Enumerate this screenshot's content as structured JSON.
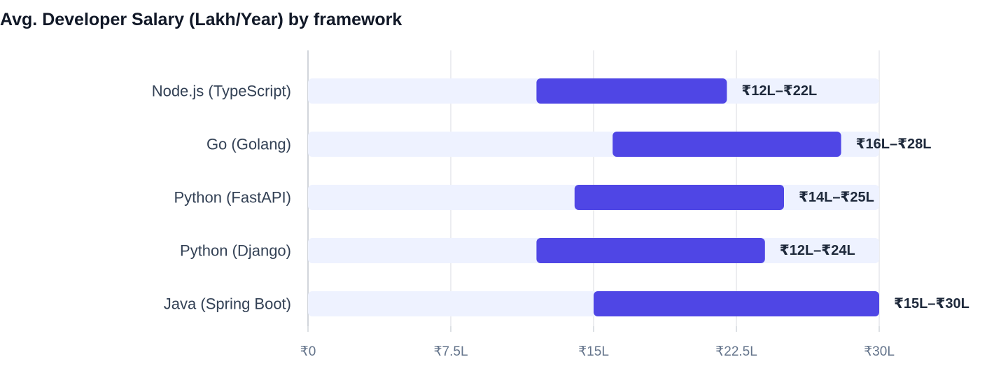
{
  "chart_data": {
    "type": "bar",
    "title": "Avg. Developer Salary (Lakh/Year) by framework",
    "categories": [
      "Node.js (TypeScript)",
      "Go (Golang)",
      "Python (FastAPI)",
      "Python (Django)",
      "Java (Spring Boot)"
    ],
    "ranges": [
      [
        12,
        22
      ],
      [
        16,
        28
      ],
      [
        14,
        25
      ],
      [
        12,
        24
      ],
      [
        15,
        30
      ]
    ],
    "value_labels": [
      "₹12L–₹22L",
      "₹16L–₹28L",
      "₹14L–₹25L",
      "₹12L–₹24L",
      "₹15L–₹30L"
    ],
    "xlim": [
      0,
      30
    ],
    "x_ticks": [
      0,
      7.5,
      15,
      22.5,
      30
    ],
    "x_tick_labels": [
      "₹0",
      "₹7.5L",
      "₹15L",
      "₹22.5L",
      "₹30L"
    ],
    "orientation": "horizontal",
    "bar_style": "floating range on full-scale track",
    "grid": true,
    "legend": "none",
    "colors": {
      "range_bar": "#4f46e5",
      "track": "#eef2ff",
      "grid": "#e5e7eb",
      "axis": "#d1d5db"
    }
  }
}
